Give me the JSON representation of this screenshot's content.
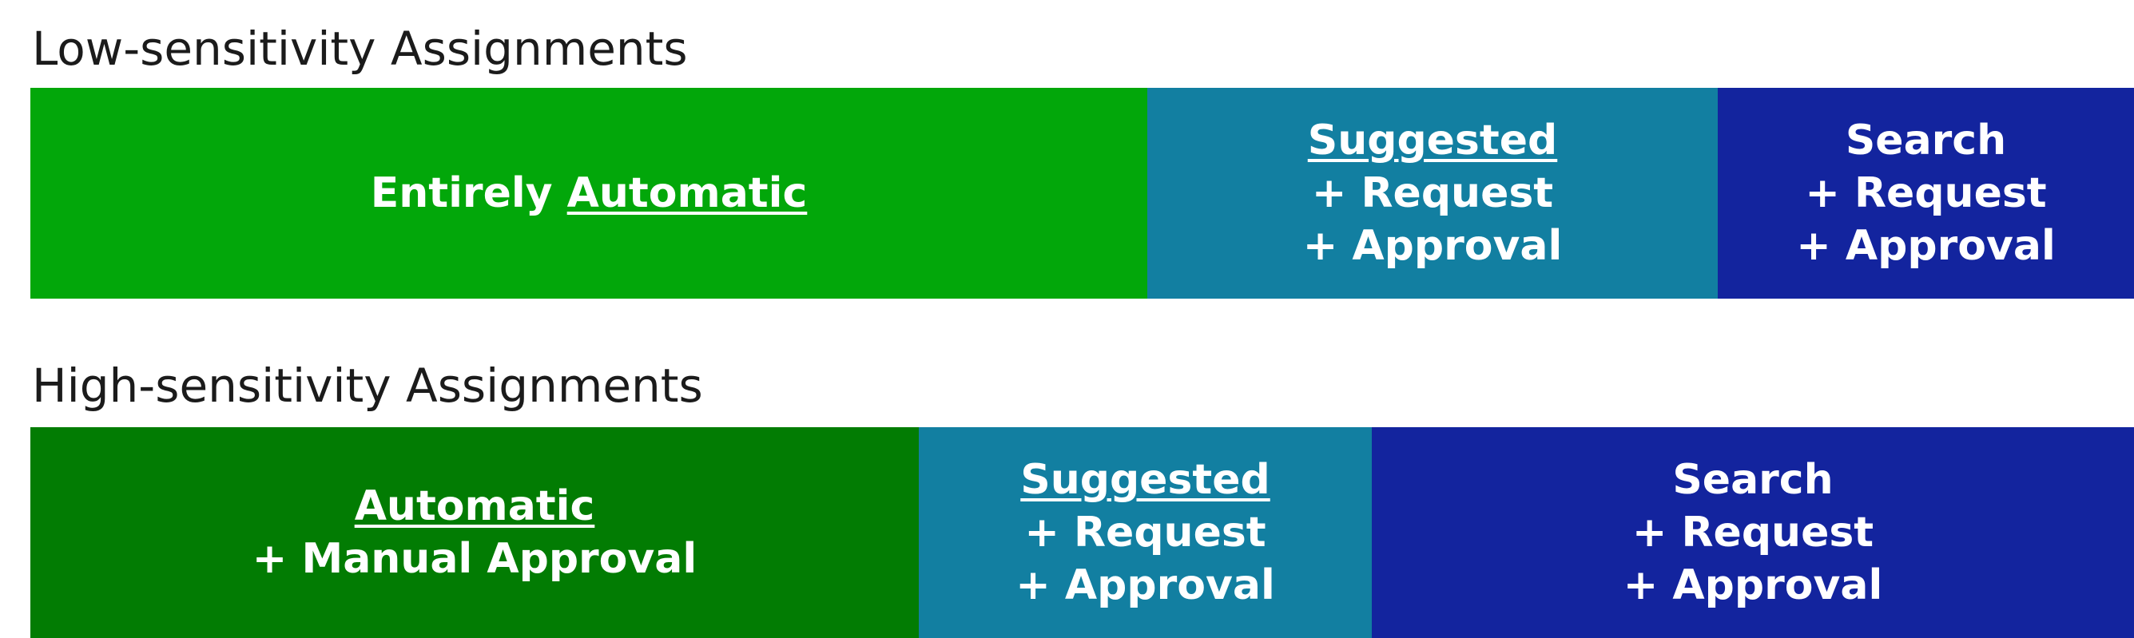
{
  "low": {
    "title": "Low-sensitivity Assignments",
    "segments": [
      {
        "prefix": "Entirely ",
        "underlined": "Automatic",
        "lines": []
      },
      {
        "prefix": "",
        "underlined": "Suggested",
        "lines": [
          "+ Request",
          "+ Approval"
        ]
      },
      {
        "prefix": "Search",
        "underlined": "",
        "lines": [
          "+ Request",
          "+ Approval"
        ]
      }
    ]
  },
  "high": {
    "title": "High-sensitivity Assignments",
    "segments": [
      {
        "prefix": "",
        "underlined": "Automatic",
        "lines": [
          "+ Manual Approval"
        ]
      },
      {
        "prefix": "",
        "underlined": "Suggested",
        "lines": [
          "+ Request",
          "+ Approval"
        ]
      },
      {
        "prefix": "Search",
        "underlined": "",
        "lines": [
          "+ Request",
          "+ Approval"
        ]
      }
    ]
  },
  "colors": {
    "automatic_low": "#02a70a",
    "automatic_high": "#027c03",
    "suggested": "#127fa1",
    "search": "#13249e"
  }
}
